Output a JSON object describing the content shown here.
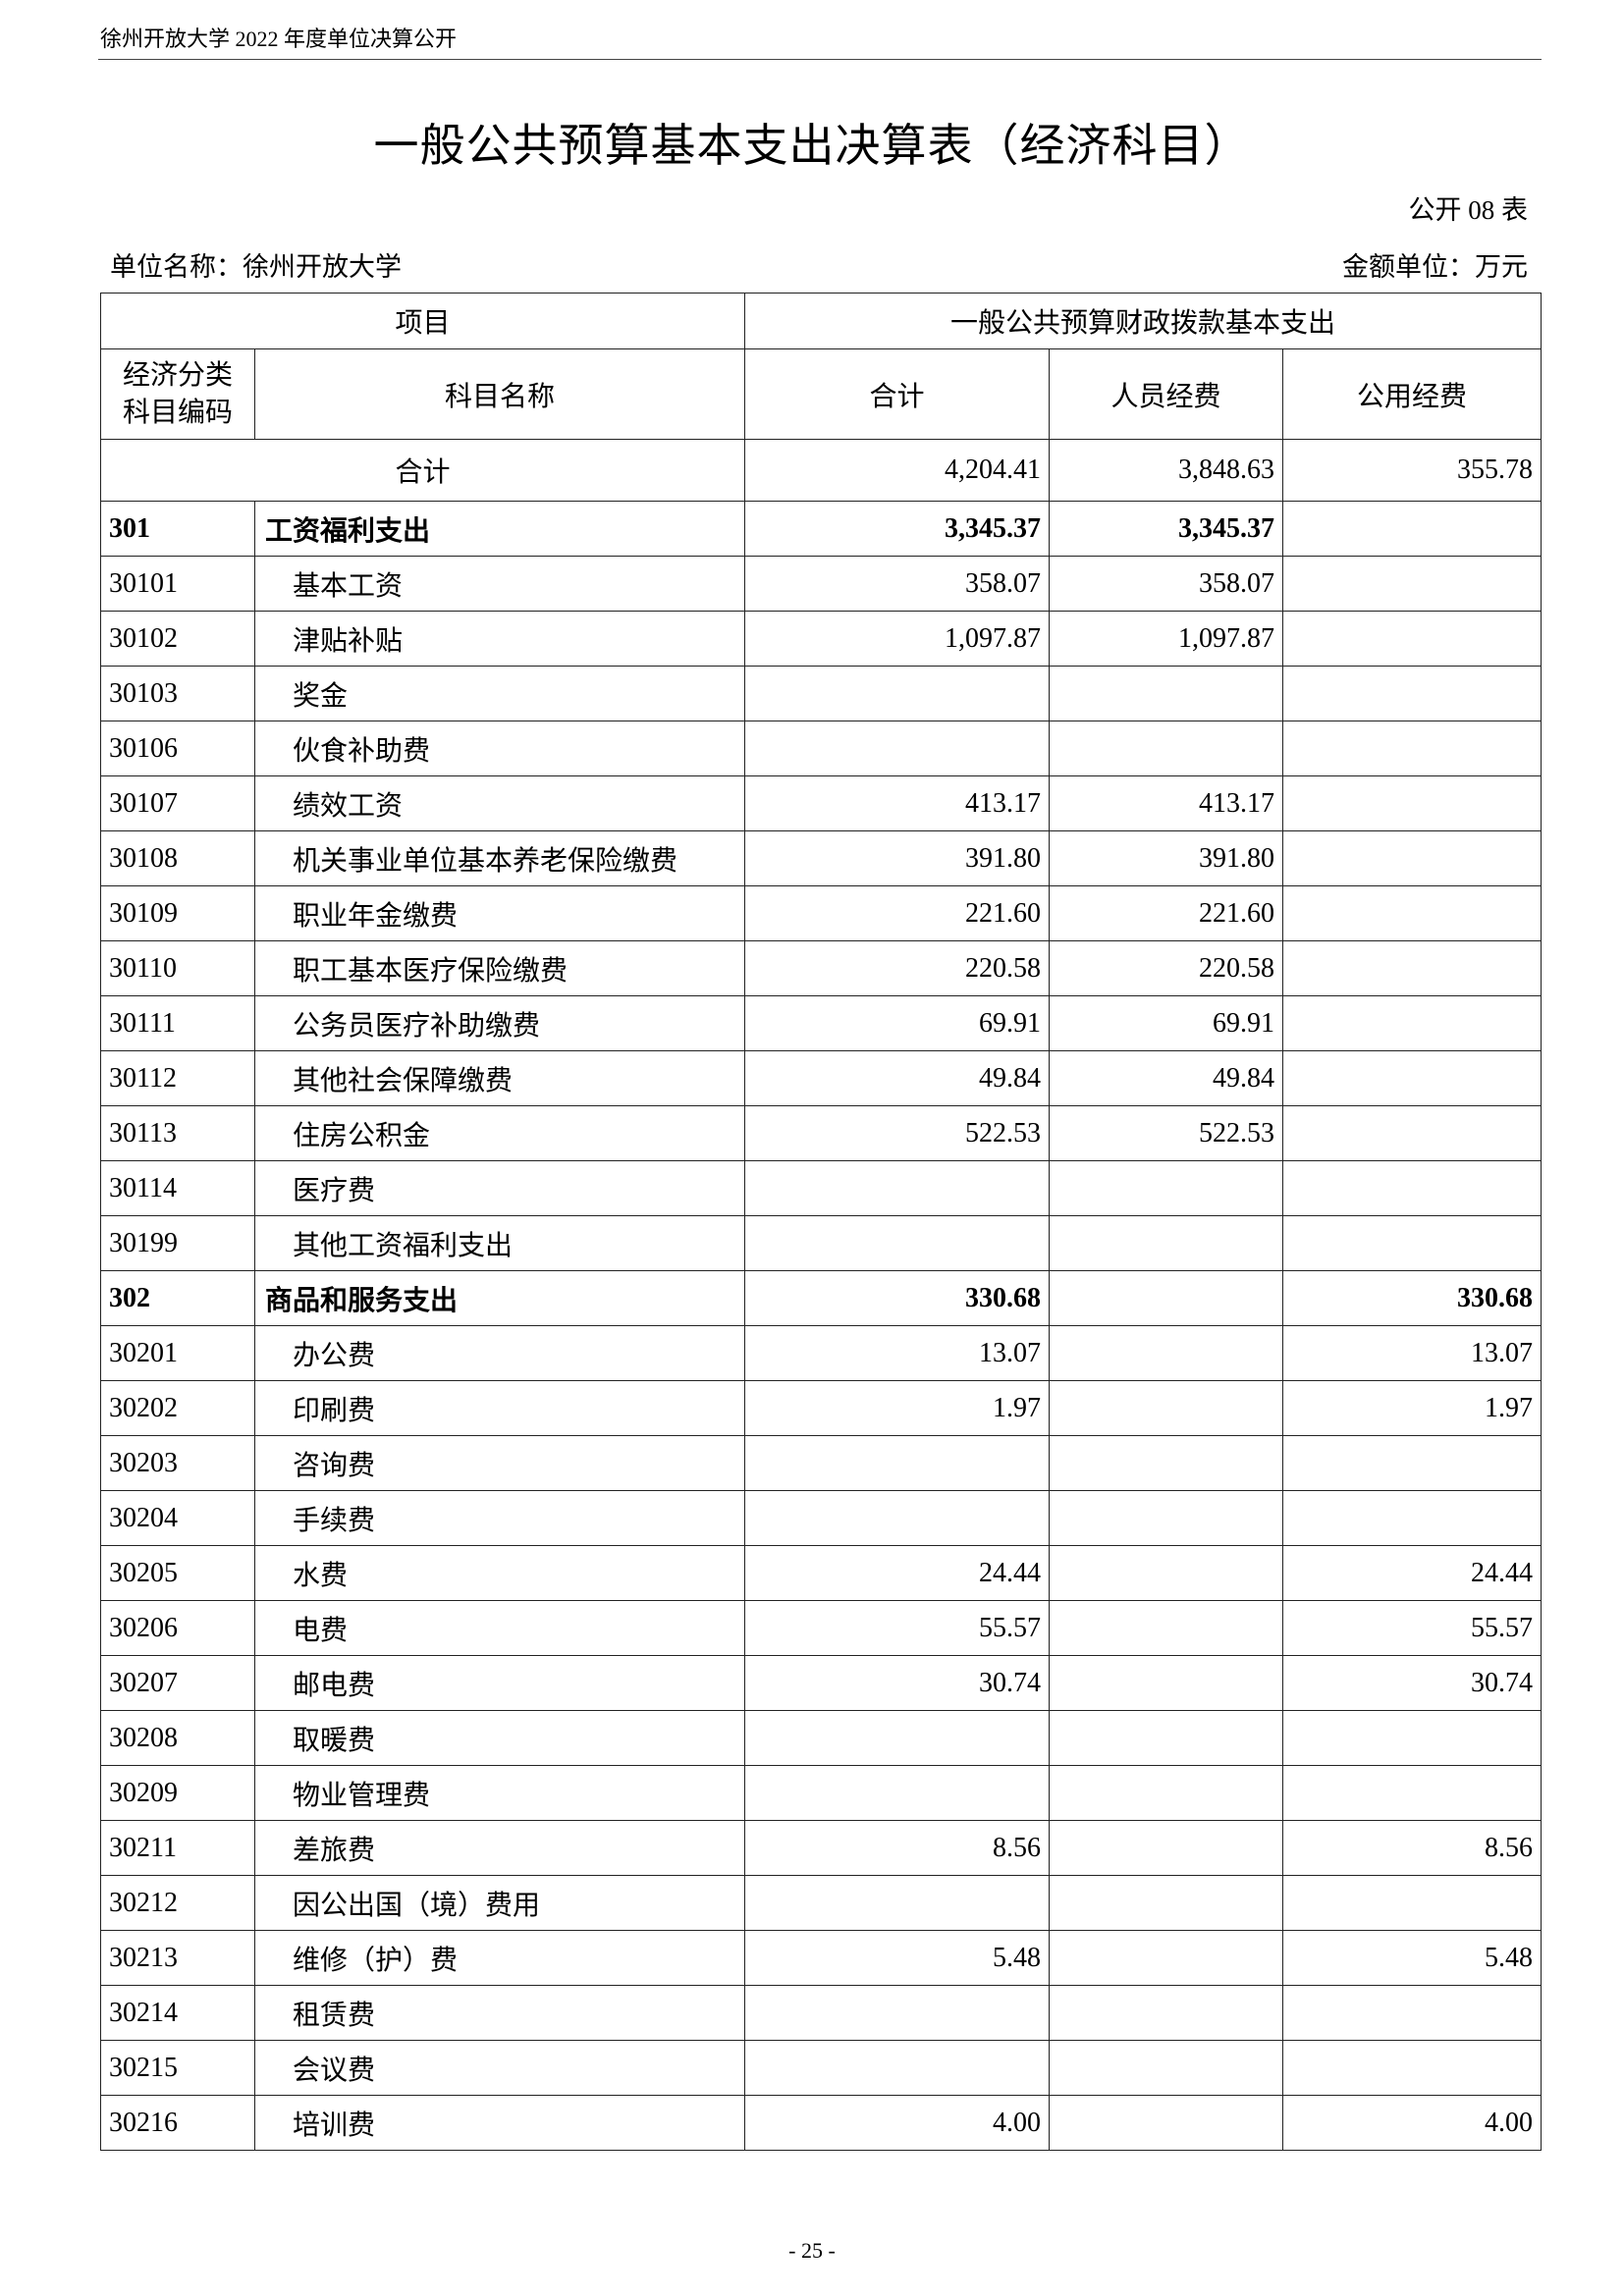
{
  "running_header": "徐州开放大学 2022 年度单位决算公开",
  "title": "一般公共预算基本支出决算表（经济科目）",
  "table_no": "公开 08 表",
  "unit_name": "单位名称：徐州开放大学",
  "amount_unit": "金额单位：万元",
  "headers": {
    "project": "项目",
    "group": "一般公共预算财政拨款基本支出",
    "code_line1": "经济分类",
    "code_line2": "科目编码",
    "name": "科目名称",
    "total": "合计",
    "personnel": "人员经费",
    "public": "公用经费"
  },
  "total_row": {
    "label": "合计",
    "total": "4,204.41",
    "personnel": "3,848.63",
    "public": "355.78"
  },
  "rows": [
    {
      "code": "301",
      "name": "工资福利支出",
      "total": "3,345.37",
      "personnel": "3,345.37",
      "public": "",
      "bold": true
    },
    {
      "code": "30101",
      "name": "基本工资",
      "total": "358.07",
      "personnel": "358.07",
      "public": ""
    },
    {
      "code": "30102",
      "name": "津贴补贴",
      "total": "1,097.87",
      "personnel": "1,097.87",
      "public": ""
    },
    {
      "code": "30103",
      "name": "奖金",
      "total": "",
      "personnel": "",
      "public": ""
    },
    {
      "code": "30106",
      "name": "伙食补助费",
      "total": "",
      "personnel": "",
      "public": ""
    },
    {
      "code": "30107",
      "name": "绩效工资",
      "total": "413.17",
      "personnel": "413.17",
      "public": ""
    },
    {
      "code": "30108",
      "name": "机关事业单位基本养老保险缴费",
      "total": "391.80",
      "personnel": "391.80",
      "public": ""
    },
    {
      "code": "30109",
      "name": "职业年金缴费",
      "total": "221.60",
      "personnel": "221.60",
      "public": ""
    },
    {
      "code": "30110",
      "name": "职工基本医疗保险缴费",
      "total": "220.58",
      "personnel": "220.58",
      "public": ""
    },
    {
      "code": "30111",
      "name": "公务员医疗补助缴费",
      "total": "69.91",
      "personnel": "69.91",
      "public": ""
    },
    {
      "code": "30112",
      "name": "其他社会保障缴费",
      "total": "49.84",
      "personnel": "49.84",
      "public": ""
    },
    {
      "code": "30113",
      "name": "住房公积金",
      "total": "522.53",
      "personnel": "522.53",
      "public": ""
    },
    {
      "code": "30114",
      "name": "医疗费",
      "total": "",
      "personnel": "",
      "public": ""
    },
    {
      "code": "30199",
      "name": "其他工资福利支出",
      "total": "",
      "personnel": "",
      "public": ""
    },
    {
      "code": "302",
      "name": "商品和服务支出",
      "total": "330.68",
      "personnel": "",
      "public": "330.68",
      "bold": true
    },
    {
      "code": "30201",
      "name": "办公费",
      "total": "13.07",
      "personnel": "",
      "public": "13.07"
    },
    {
      "code": "30202",
      "name": "印刷费",
      "total": "1.97",
      "personnel": "",
      "public": "1.97"
    },
    {
      "code": "30203",
      "name": "咨询费",
      "total": "",
      "personnel": "",
      "public": ""
    },
    {
      "code": "30204",
      "name": "手续费",
      "total": "",
      "personnel": "",
      "public": ""
    },
    {
      "code": "30205",
      "name": "水费",
      "total": "24.44",
      "personnel": "",
      "public": "24.44"
    },
    {
      "code": "30206",
      "name": "电费",
      "total": "55.57",
      "personnel": "",
      "public": "55.57"
    },
    {
      "code": "30207",
      "name": "邮电费",
      "total": "30.74",
      "personnel": "",
      "public": "30.74"
    },
    {
      "code": "30208",
      "name": "取暖费",
      "total": "",
      "personnel": "",
      "public": ""
    },
    {
      "code": "30209",
      "name": "物业管理费",
      "total": "",
      "personnel": "",
      "public": ""
    },
    {
      "code": "30211",
      "name": "差旅费",
      "total": "8.56",
      "personnel": "",
      "public": "8.56"
    },
    {
      "code": "30212",
      "name": "因公出国（境）费用",
      "total": "",
      "personnel": "",
      "public": ""
    },
    {
      "code": "30213",
      "name": "维修（护）费",
      "total": "5.48",
      "personnel": "",
      "public": "5.48"
    },
    {
      "code": "30214",
      "name": "租赁费",
      "total": "",
      "personnel": "",
      "public": ""
    },
    {
      "code": "30215",
      "name": "会议费",
      "total": "",
      "personnel": "",
      "public": ""
    },
    {
      "code": "30216",
      "name": "培训费",
      "total": "4.00",
      "personnel": "",
      "public": "4.00"
    }
  ],
  "page_number": "- 25 -"
}
